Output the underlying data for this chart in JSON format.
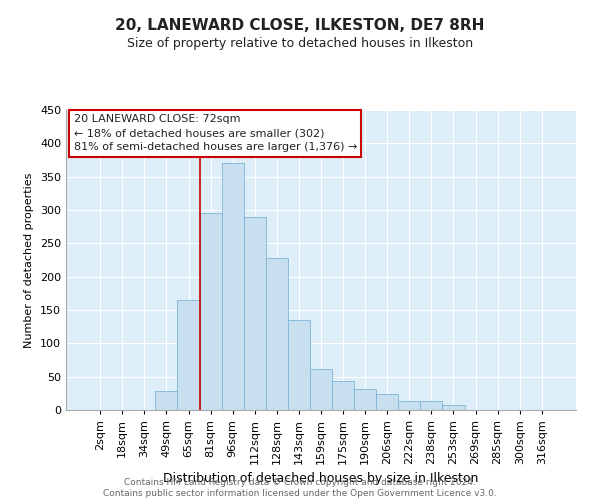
{
  "title": "20, LANEWARD CLOSE, ILKESTON, DE7 8RH",
  "subtitle": "Size of property relative to detached houses in Ilkeston",
  "xlabel": "Distribution of detached houses by size in Ilkeston",
  "ylabel": "Number of detached properties",
  "bar_color": "#c8dff0",
  "bar_edge_color": "#7eb4d4",
  "background_color": "#ffffff",
  "axes_bg_color": "#ddeef8",
  "grid_color": "#ffffff",
  "categories": [
    "2sqm",
    "18sqm",
    "34sqm",
    "49sqm",
    "65sqm",
    "81sqm",
    "96sqm",
    "112sqm",
    "128sqm",
    "143sqm",
    "159sqm",
    "175sqm",
    "190sqm",
    "206sqm",
    "222sqm",
    "238sqm",
    "253sqm",
    "269sqm",
    "285sqm",
    "300sqm",
    "316sqm"
  ],
  "values": [
    0,
    0,
    0,
    28,
    165,
    295,
    370,
    290,
    228,
    135,
    62,
    44,
    32,
    24,
    14,
    14,
    7,
    0,
    0,
    0,
    0
  ],
  "ylim": [
    0,
    450
  ],
  "yticks": [
    0,
    50,
    100,
    150,
    200,
    250,
    300,
    350,
    400,
    450
  ],
  "vline_index": 5,
  "vline_color": "#cc0000",
  "annotation_line1": "20 LANEWARD CLOSE: 72sqm",
  "annotation_line2": "← 18% of detached houses are smaller (302)",
  "annotation_line3": "81% of semi-detached houses are larger (1,376) →",
  "annotation_box_color": "#ffffff",
  "annotation_box_edge": "#cc0000",
  "footer_line1": "Contains HM Land Registry data © Crown copyright and database right 2024.",
  "footer_line2": "Contains public sector information licensed under the Open Government Licence v3.0.",
  "title_fontsize": 11,
  "subtitle_fontsize": 9,
  "footer_fontsize": 6.5,
  "tick_fontsize": 8,
  "xlabel_fontsize": 9,
  "ylabel_fontsize": 8
}
